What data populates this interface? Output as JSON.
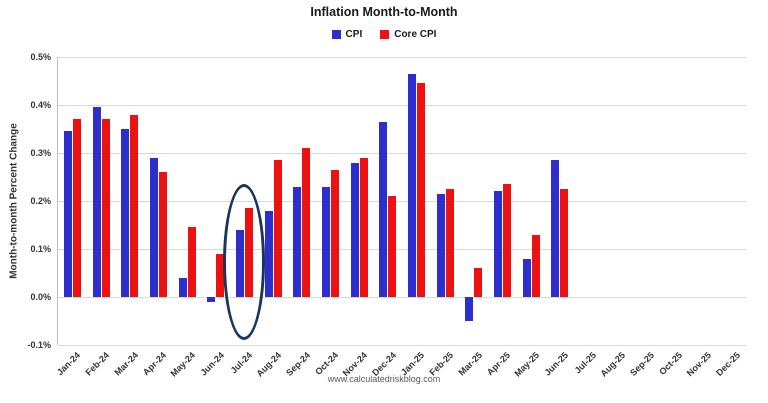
{
  "watermark": "www.calculatedriskblog.com",
  "chart_data": {
    "type": "bar",
    "title": "Inflation Month-to-Month",
    "xlabel": "",
    "ylabel": "Month-to-month Percent Change",
    "ylim": [
      -0.1,
      0.5
    ],
    "yticks": [
      "0.5%",
      "0.4%",
      "0.3%",
      "0.2%",
      "0.1%",
      "0.0%",
      "-0.1%"
    ],
    "grid": "horizontal",
    "legend_position": "top-center",
    "categories": [
      "Jan-24",
      "Feb-24",
      "Mar-24",
      "Apr-24",
      "May-24",
      "Jun-24",
      "Jul-24",
      "Aug-24",
      "Sep-24",
      "Oct-24",
      "Nov-24",
      "Dec-24",
      "Jan-25",
      "Feb-25",
      "Mar-25",
      "Apr-25",
      "May-25",
      "Jun-25",
      "Jul-25",
      "Aug-25",
      "Sep-25",
      "Oct-25",
      "Nov-25",
      "Dec-25"
    ],
    "series": [
      {
        "name": "CPI",
        "color": "#2e2ecc",
        "values": [
          0.345,
          0.395,
          0.35,
          0.29,
          0.04,
          -0.01,
          0.14,
          0.18,
          0.23,
          0.23,
          0.28,
          0.365,
          0.465,
          0.215,
          -0.05,
          0.22,
          0.08,
          0.285,
          null,
          null,
          null,
          null,
          null,
          null
        ]
      },
      {
        "name": "Core CPI",
        "color": "#ee1111",
        "values": [
          0.37,
          0.37,
          0.38,
          0.26,
          0.145,
          0.09,
          0.185,
          0.285,
          0.31,
          0.265,
          0.29,
          0.21,
          0.445,
          0.225,
          0.06,
          0.235,
          0.13,
          0.225,
          null,
          null,
          null,
          null,
          null,
          null
        ]
      }
    ],
    "annotation": {
      "type": "ellipse",
      "category": "Jul-24",
      "y_top": 0.235,
      "y_bottom": -0.078,
      "color": "#17375e"
    },
    "colors": {
      "gridline": "#d9d9d9",
      "axis": "#bfbfbf",
      "text": "#333333"
    }
  }
}
